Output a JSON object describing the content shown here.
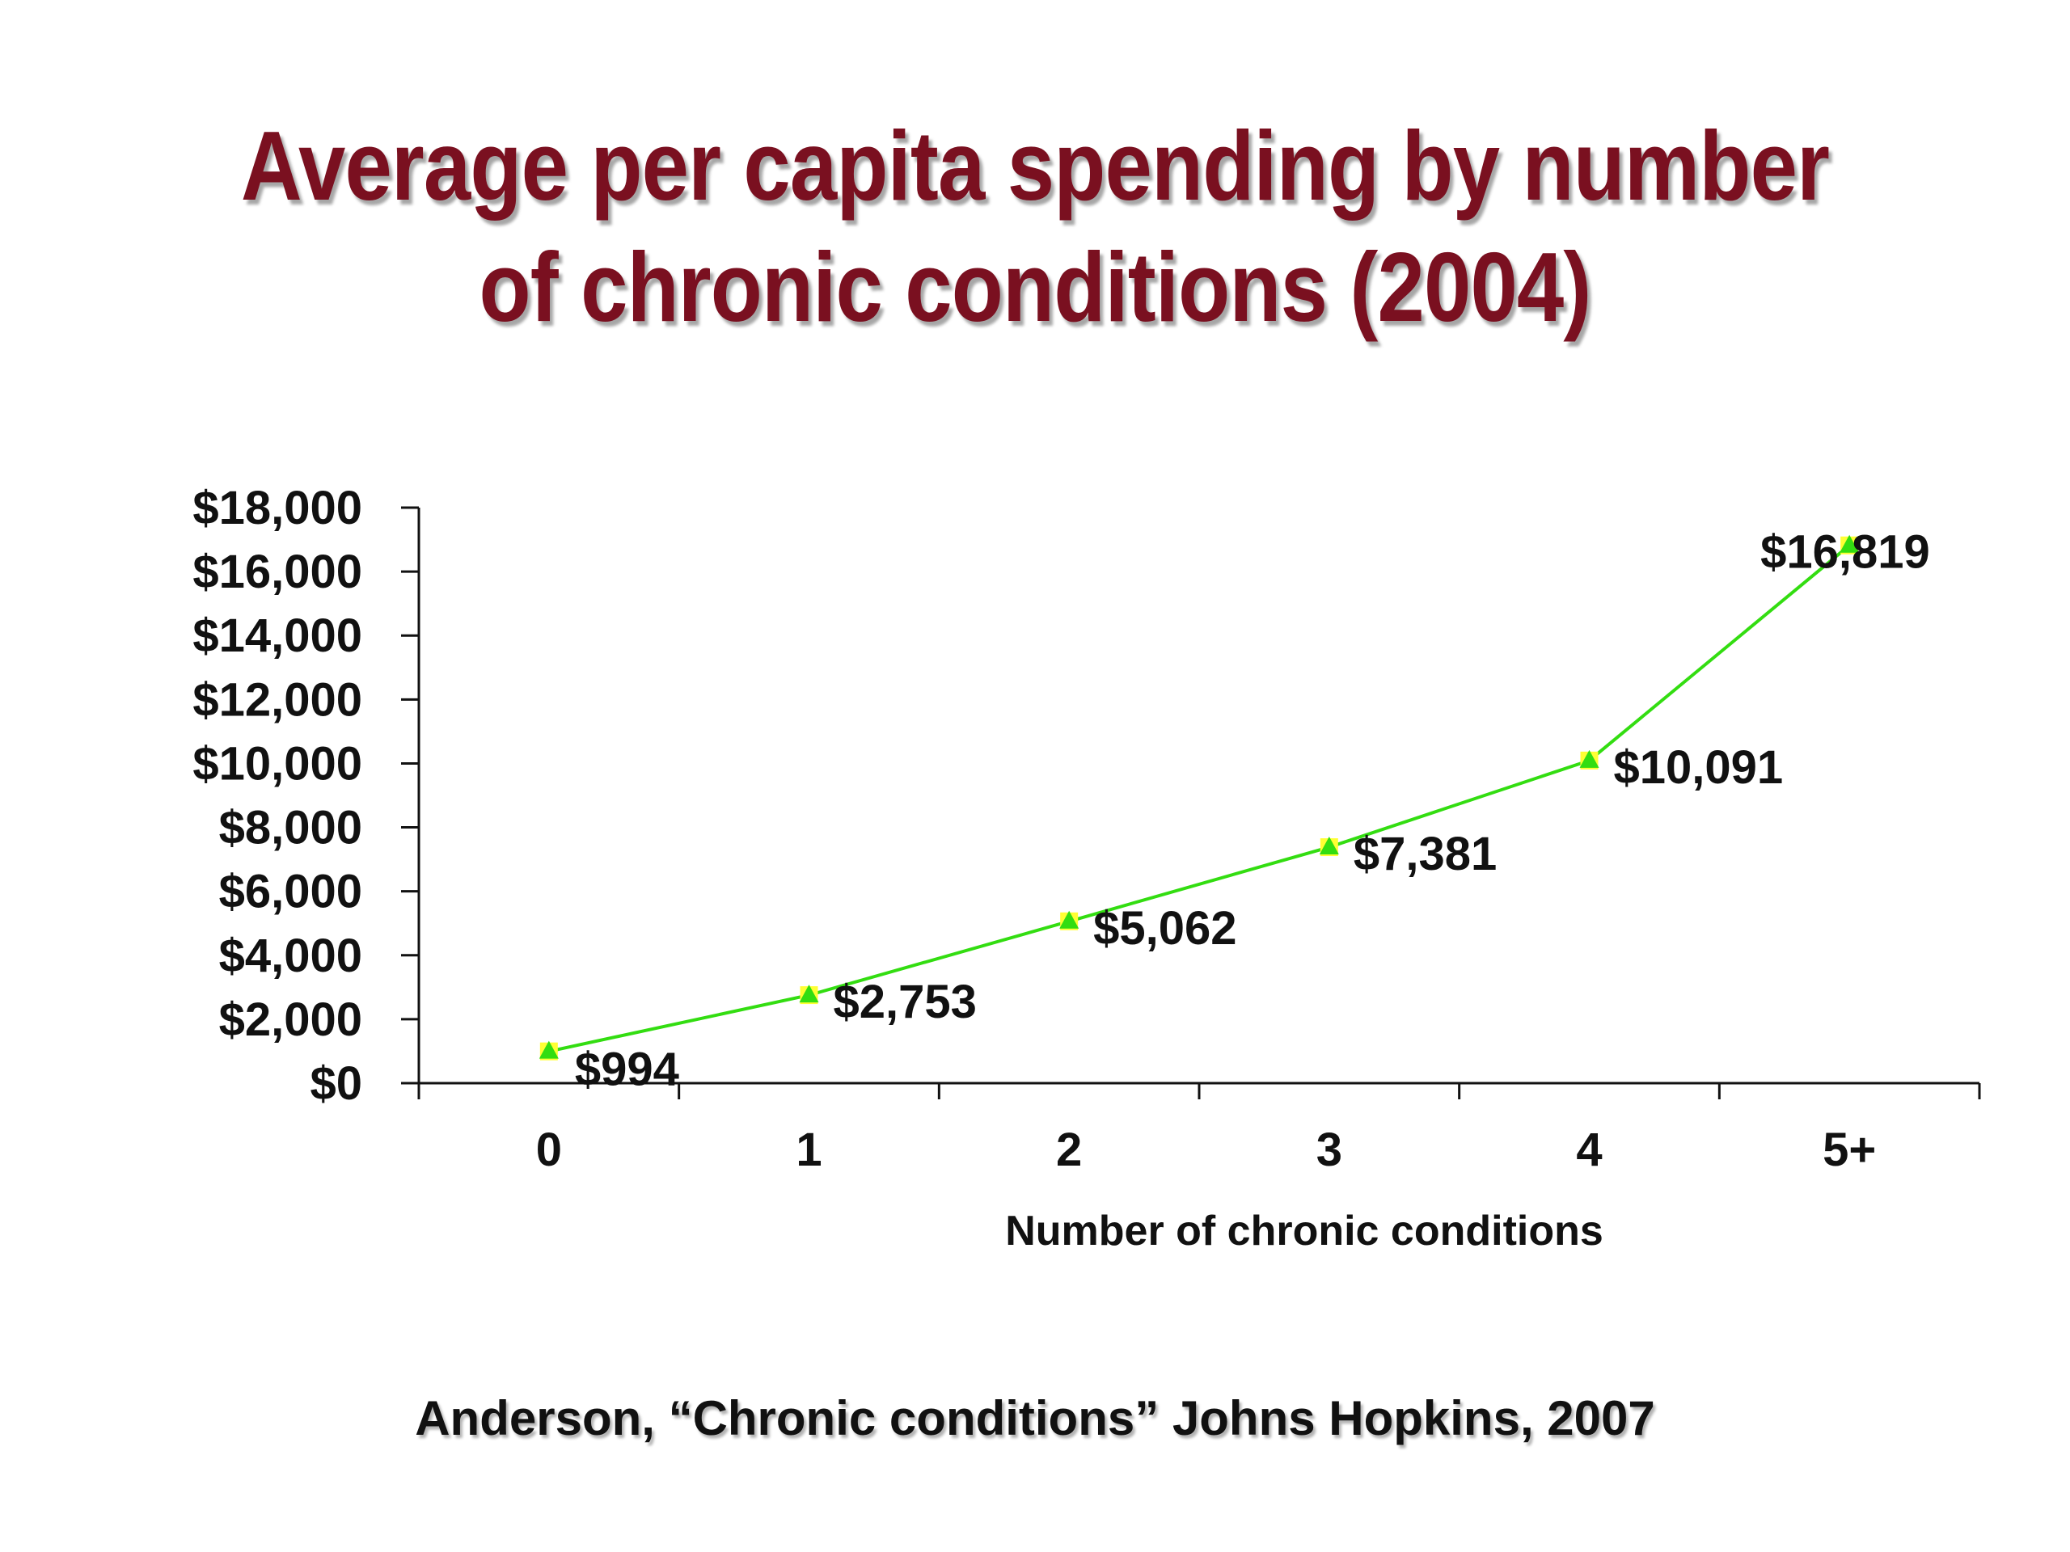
{
  "title": {
    "line1": "Average per capita spending by number",
    "line2": "of chronic conditions (2004)"
  },
  "source": "Anderson, “Chronic conditions” Johns Hopkins, 2007",
  "colors": {
    "title": "#7a1020",
    "line": "#33dd11",
    "marker_fill": "#33dd11",
    "marker_back": "#ffff33"
  },
  "chart_data": {
    "type": "line",
    "title": "Average per capita spending by number of chronic conditions (2004)",
    "xlabel": "Number of chronic conditions",
    "ylabel": "",
    "categories": [
      "0",
      "1",
      "2",
      "3",
      "4",
      "5+"
    ],
    "series": [
      {
        "values": [
          994,
          2753,
          5062,
          7381,
          10091,
          16819
        ],
        "labels": [
          "$994",
          "$2,753",
          "$5,062",
          "$7,381",
          "$10,091",
          "$16,819"
        ]
      }
    ],
    "ylim": [
      0,
      18000
    ],
    "yticks": [
      0,
      2000,
      4000,
      6000,
      8000,
      10000,
      12000,
      14000,
      16000,
      18000
    ],
    "ytick_labels": [
      "$0",
      "$2,000",
      "$4,000",
      "$6,000",
      "$8,000",
      "$10,000",
      "$12,000",
      "$14,000",
      "$16,000",
      "$18,000"
    ],
    "grid": false,
    "legend": "none"
  }
}
